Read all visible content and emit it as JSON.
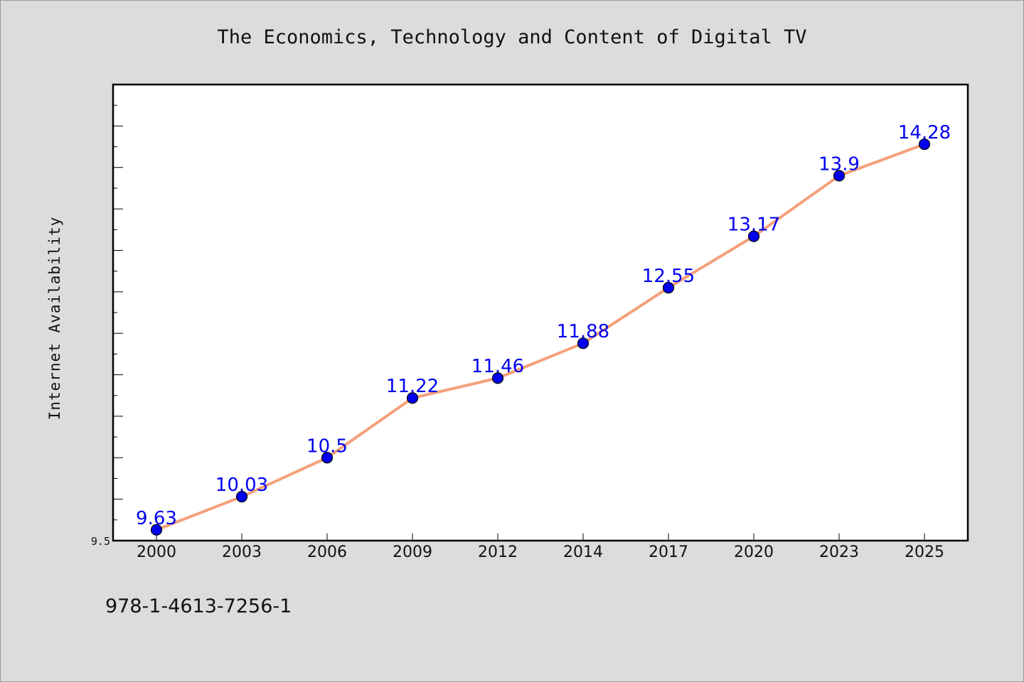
{
  "chart_data": {
    "type": "line",
    "title": "The Economics, Technology and Content of Digital TV",
    "xlabel": "",
    "ylabel": "Internet Availability",
    "categories": [
      "2000",
      "2003",
      "2006",
      "2009",
      "2012",
      "2014",
      "2017",
      "2020",
      "2023",
      "2025"
    ],
    "series": [
      {
        "values": [
          9.63,
          10.03,
          10.5,
          11.22,
          11.46,
          11.88,
          12.55,
          13.17,
          13.9,
          14.28
        ],
        "value_labels": [
          "9.63",
          "10.03",
          "10.5",
          "11.22",
          "11.46",
          "11.88",
          "12.55",
          "13.17",
          "13.9",
          "14.28"
        ],
        "line_color": "#f4a07a",
        "marker_color": "#0000ee",
        "label_color": "#0000ee"
      }
    ],
    "y_tick_labels": [
      "9.5"
    ],
    "ylim": [
      9.5,
      15.0
    ],
    "grid": false,
    "legend": "none"
  },
  "footer": {
    "text": "978-1-4613-7256-1"
  },
  "colors": {
    "background": "#dcdcdc",
    "plot_background": "#ffffff",
    "axis": "#000000"
  }
}
